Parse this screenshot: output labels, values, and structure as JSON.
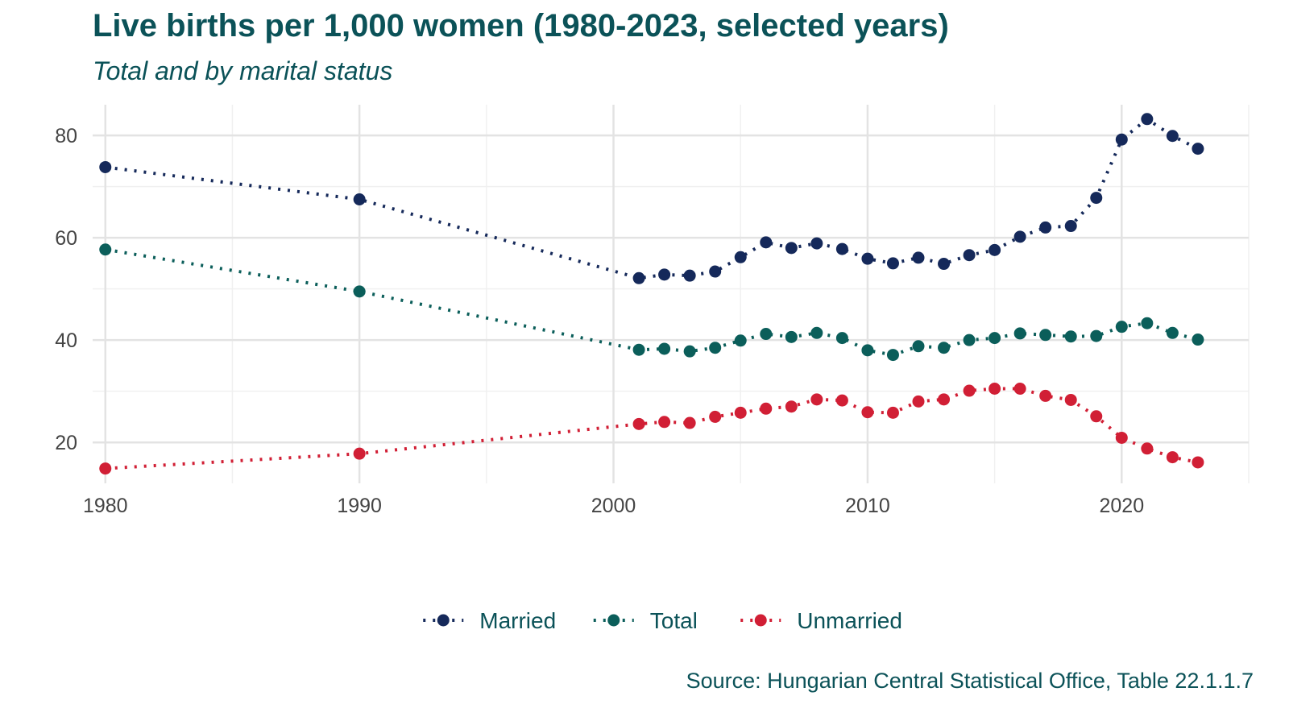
{
  "chart_data": {
    "type": "line",
    "title": "Live births per 1,000 women (1980-2023, selected years)",
    "subtitle": "Total and by marital status",
    "source": "Source: Hungarian Central Statistical Office, Table 22.1.1.7",
    "xlabel": "",
    "ylabel": "",
    "xlim": [
      1979.5,
      2025
    ],
    "ylim": [
      12,
      86
    ],
    "x_ticks": [
      1980,
      1990,
      2000,
      2010,
      2020
    ],
    "y_ticks": [
      20,
      40,
      60,
      80
    ],
    "grid": true,
    "legend_position": "bottom",
    "line_style": "dotted",
    "x": [
      1980,
      1990,
      2001,
      2002,
      2003,
      2004,
      2005,
      2006,
      2007,
      2008,
      2009,
      2010,
      2011,
      2012,
      2013,
      2014,
      2015,
      2016,
      2017,
      2018,
      2019,
      2020,
      2021,
      2022,
      2023
    ],
    "series": [
      {
        "name": "Married",
        "color": "#15295a",
        "values": [
          73.8,
          67.5,
          52.1,
          52.8,
          52.6,
          53.4,
          56.2,
          59.1,
          58.0,
          58.9,
          57.8,
          55.9,
          55.0,
          56.1,
          54.9,
          56.6,
          57.6,
          60.2,
          62.0,
          62.3,
          67.8,
          79.2,
          83.2,
          79.9,
          77.4
        ]
      },
      {
        "name": "Total",
        "color": "#0b5e5a",
        "values": [
          57.7,
          49.5,
          38.1,
          38.3,
          37.8,
          38.5,
          39.9,
          41.2,
          40.6,
          41.4,
          40.4,
          38.0,
          37.1,
          38.8,
          38.5,
          40.0,
          40.4,
          41.3,
          41.0,
          40.7,
          40.8,
          42.6,
          43.3,
          41.4,
          40.1
        ]
      },
      {
        "name": "Unmarried",
        "color": "#d11f35",
        "values": [
          14.9,
          17.8,
          23.6,
          24.0,
          23.8,
          25.0,
          25.8,
          26.6,
          27.0,
          28.4,
          28.2,
          25.9,
          25.8,
          28.0,
          28.4,
          30.1,
          30.5,
          30.5,
          29.1,
          28.3,
          25.1,
          20.9,
          18.8,
          17.1,
          16.1
        ]
      }
    ]
  }
}
